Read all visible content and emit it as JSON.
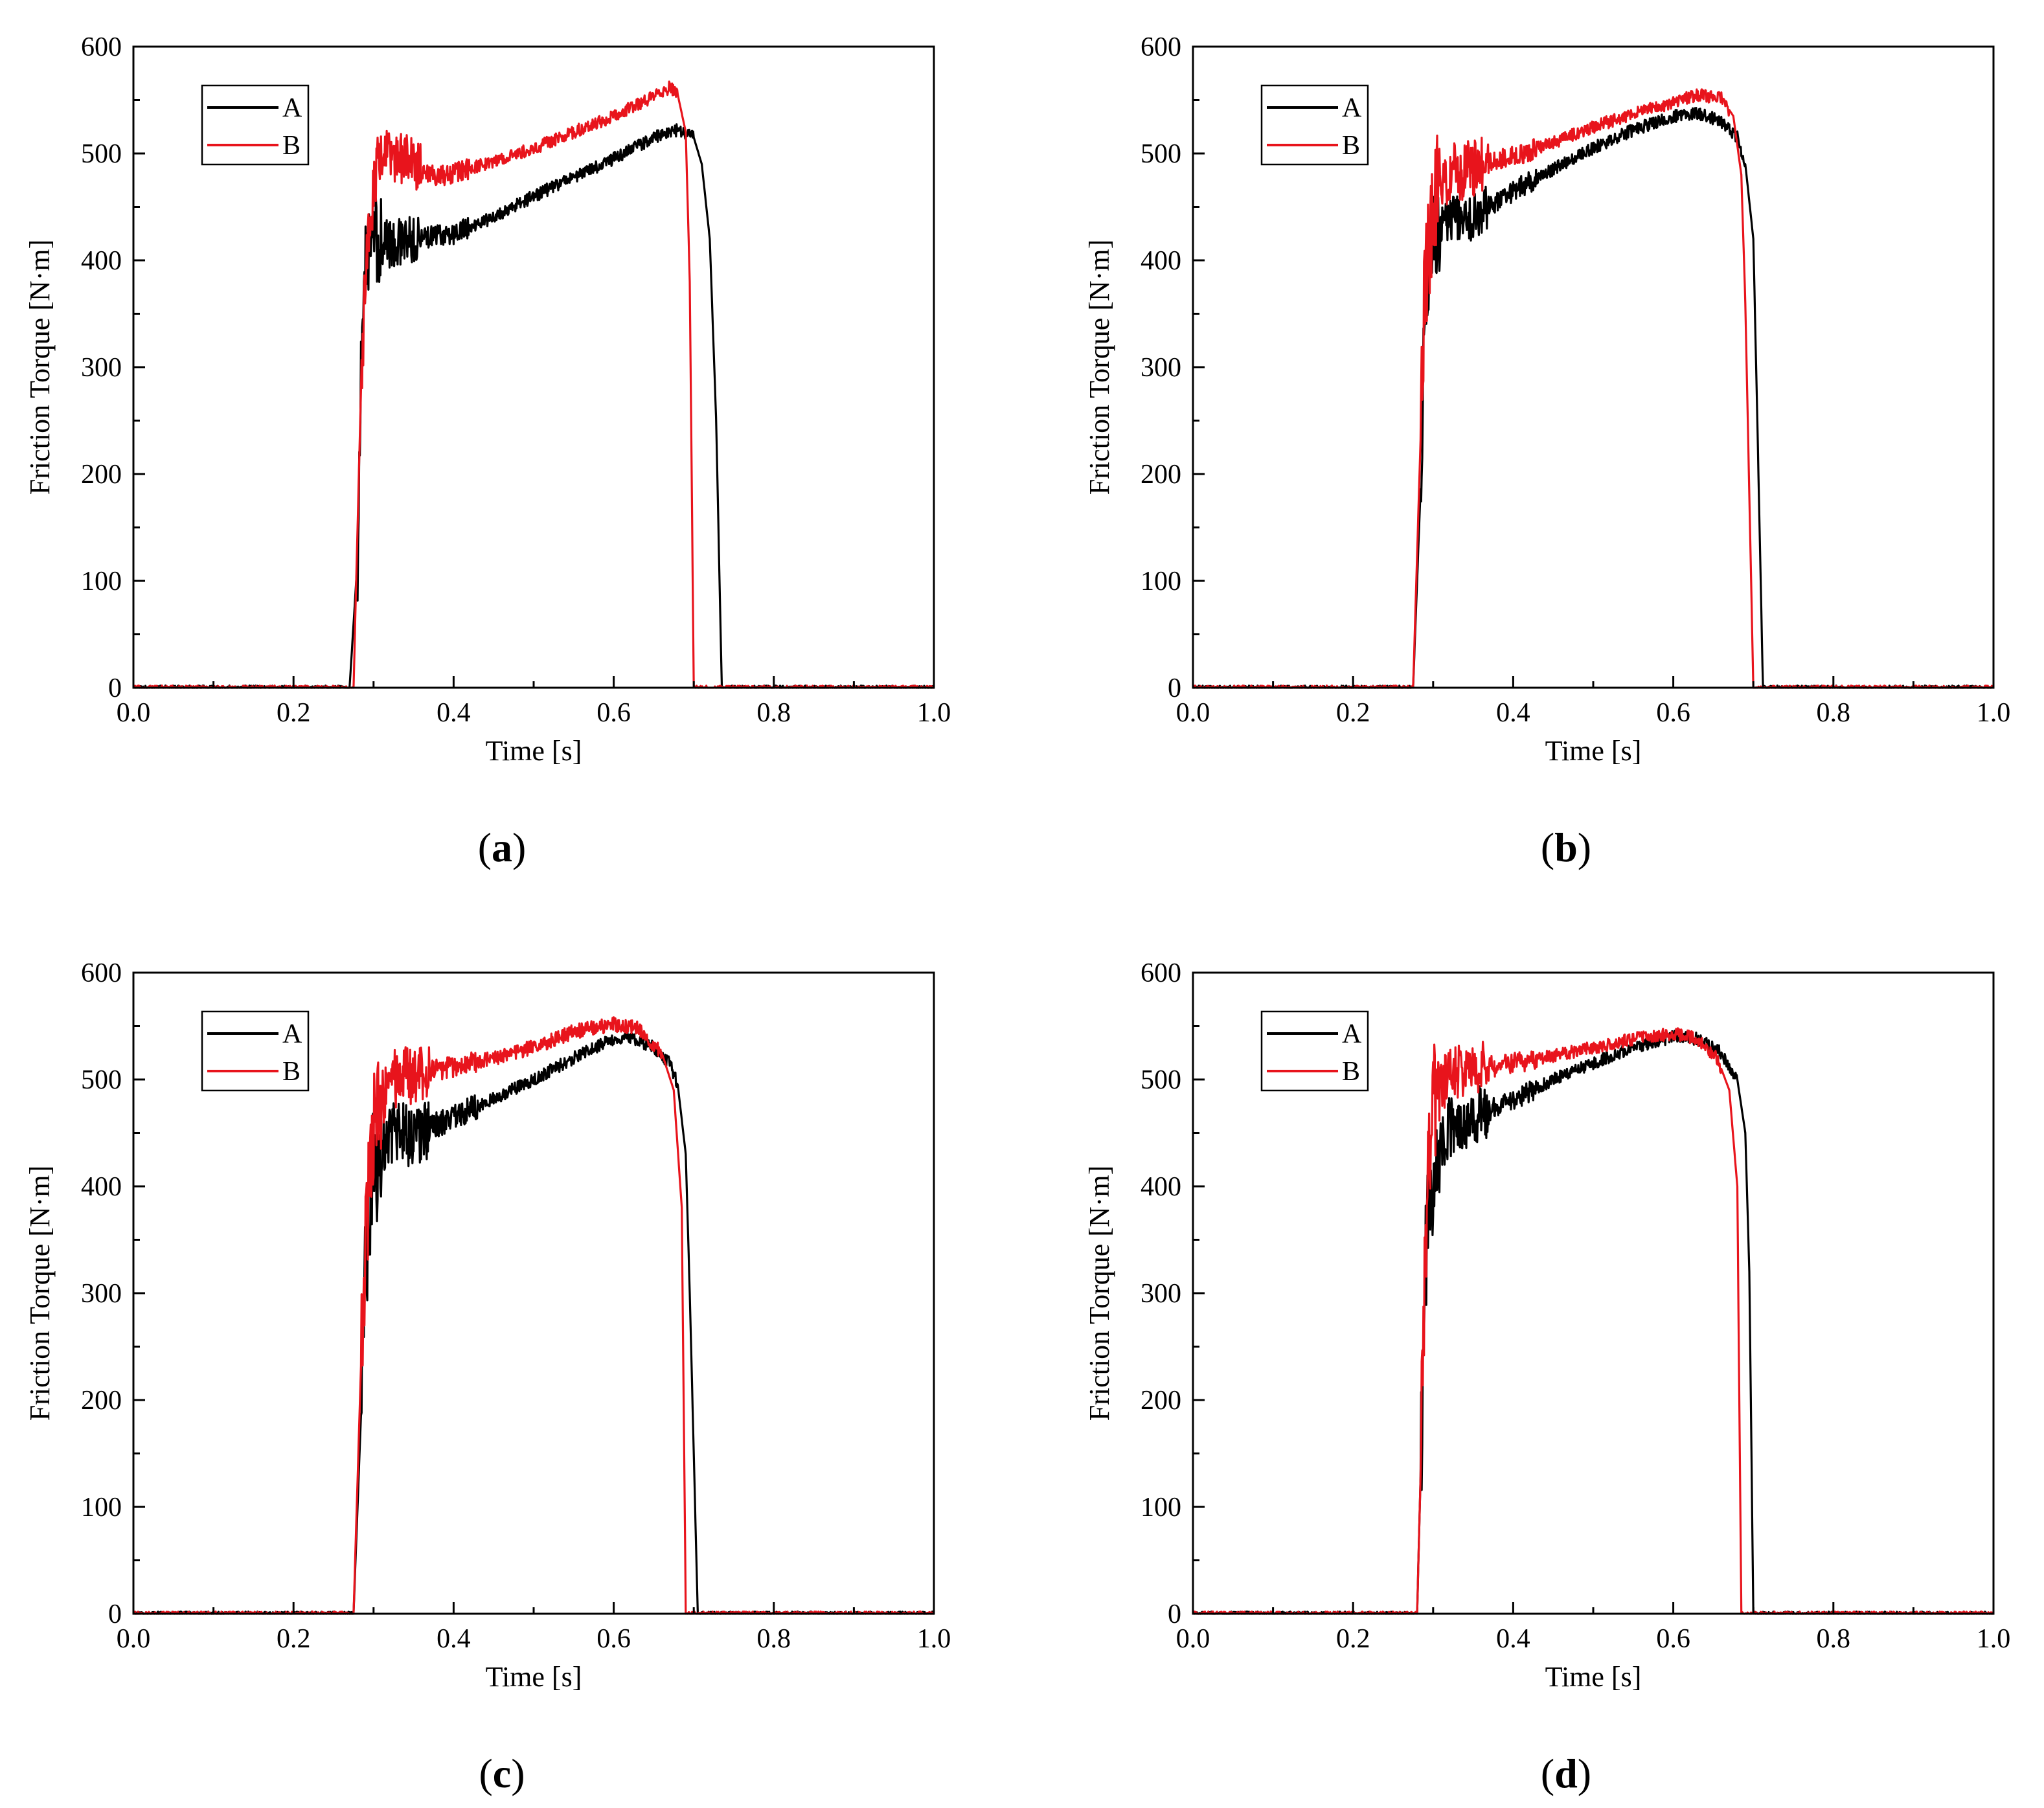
{
  "figure": {
    "colors": {
      "A": "#000000",
      "B": "#e8141c",
      "axis": "#000000",
      "background": "#ffffff"
    }
  },
  "chart_data": [
    {
      "panel": "a",
      "caption": {
        "open": "(",
        "letter": "a",
        "close": ")"
      },
      "type": "line",
      "title": "",
      "xlabel": "Time [s]",
      "ylabel": "Friction Torque [N·m]",
      "xlim": [
        0,
        1.0
      ],
      "ylim": [
        0,
        600
      ],
      "xticks": [
        "0.0",
        "0.2",
        "0.4",
        "0.6",
        "0.8",
        "1.0"
      ],
      "yticks": [
        "0",
        "100",
        "200",
        "300",
        "400",
        "500",
        "600"
      ],
      "grid": false,
      "legend_position": "top-left",
      "series": [
        {
          "name": "A",
          "color": "#000000",
          "points": [
            [
              0.0,
              0
            ],
            [
              0.27,
              0
            ],
            [
              0.28,
              120
            ],
            [
              0.285,
              330
            ],
            [
              0.29,
              400
            ],
            [
              0.3,
              420
            ],
            [
              0.32,
              415
            ],
            [
              0.35,
              420
            ],
            [
              0.4,
              425
            ],
            [
              0.45,
              440
            ],
            [
              0.5,
              460
            ],
            [
              0.55,
              478
            ],
            [
              0.6,
              495
            ],
            [
              0.65,
              515
            ],
            [
              0.68,
              522
            ],
            [
              0.7,
              515
            ],
            [
              0.71,
              490
            ],
            [
              0.72,
              420
            ],
            [
              0.728,
              250
            ],
            [
              0.735,
              0
            ],
            [
              1.0,
              0
            ]
          ],
          "noise": [
            [
              0.28,
              0.31,
              40
            ],
            [
              0.31,
              0.36,
              22
            ],
            [
              0.36,
              0.42,
              10
            ],
            [
              0.42,
              0.7,
              6
            ]
          ]
        },
        {
          "name": "B",
          "color": "#e8141c",
          "points": [
            [
              0.0,
              0
            ],
            [
              0.275,
              0
            ],
            [
              0.285,
              300
            ],
            [
              0.295,
              440
            ],
            [
              0.305,
              490
            ],
            [
              0.32,
              500
            ],
            [
              0.35,
              490
            ],
            [
              0.38,
              478
            ],
            [
              0.4,
              482
            ],
            [
              0.45,
              492
            ],
            [
              0.5,
              505
            ],
            [
              0.55,
              520
            ],
            [
              0.6,
              535
            ],
            [
              0.65,
              553
            ],
            [
              0.67,
              562
            ],
            [
              0.68,
              555
            ],
            [
              0.69,
              520
            ],
            [
              0.695,
              380
            ],
            [
              0.7,
              0
            ],
            [
              1.0,
              0
            ]
          ],
          "noise": [
            [
              0.285,
              0.3,
              45
            ],
            [
              0.3,
              0.36,
              25
            ],
            [
              0.36,
              0.42,
              10
            ],
            [
              0.42,
              0.68,
              6
            ]
          ]
        }
      ]
    },
    {
      "panel": "b",
      "caption": {
        "open": "(",
        "letter": "b",
        "close": ")"
      },
      "type": "line",
      "title": "",
      "xlabel": "Time [s]",
      "ylabel": "Friction Torque [N·m]",
      "xlim": [
        0,
        1.0
      ],
      "ylim": [
        0,
        600
      ],
      "xticks": [
        "0.0",
        "0.2",
        "0.4",
        "0.6",
        "0.8",
        "1.0"
      ],
      "yticks": [
        "0",
        "100",
        "200",
        "300",
        "400",
        "500",
        "600"
      ],
      "grid": false,
      "legend_position": "top-left",
      "series": [
        {
          "name": "A",
          "color": "#000000",
          "points": [
            [
              0.0,
              0
            ],
            [
              0.275,
              0
            ],
            [
              0.285,
              200
            ],
            [
              0.29,
              360
            ],
            [
              0.3,
              430
            ],
            [
              0.32,
              440
            ],
            [
              0.35,
              440
            ],
            [
              0.4,
              465
            ],
            [
              0.45,
              485
            ],
            [
              0.5,
              505
            ],
            [
              0.55,
              522
            ],
            [
              0.6,
              535
            ],
            [
              0.63,
              538
            ],
            [
              0.66,
              530
            ],
            [
              0.68,
              515
            ],
            [
              0.69,
              490
            ],
            [
              0.7,
              420
            ],
            [
              0.705,
              250
            ],
            [
              0.712,
              0
            ],
            [
              1.0,
              0
            ]
          ],
          "noise": [
            [
              0.285,
              0.31,
              45
            ],
            [
              0.31,
              0.37,
              22
            ],
            [
              0.37,
              0.43,
              10
            ],
            [
              0.43,
              0.69,
              6
            ]
          ]
        },
        {
          "name": "B",
          "color": "#e8141c",
          "points": [
            [
              0.0,
              0
            ],
            [
              0.275,
              0
            ],
            [
              0.285,
              250
            ],
            [
              0.29,
              380
            ],
            [
              0.3,
              460
            ],
            [
              0.32,
              480
            ],
            [
              0.35,
              488
            ],
            [
              0.4,
              497
            ],
            [
              0.45,
              510
            ],
            [
              0.5,
              525
            ],
            [
              0.55,
              537
            ],
            [
              0.6,
              548
            ],
            [
              0.63,
              555
            ],
            [
              0.66,
              552
            ],
            [
              0.675,
              535
            ],
            [
              0.685,
              480
            ],
            [
              0.69,
              360
            ],
            [
              0.7,
              0
            ],
            [
              1.0,
              0
            ]
          ],
          "noise": [
            [
              0.285,
              0.31,
              60
            ],
            [
              0.31,
              0.37,
              28
            ],
            [
              0.37,
              0.43,
              10
            ],
            [
              0.43,
              0.67,
              6
            ]
          ]
        }
      ]
    },
    {
      "panel": "c",
      "caption": {
        "open": "(",
        "letter": "c",
        "close": ")"
      },
      "type": "line",
      "title": "",
      "xlabel": "Time [s]",
      "ylabel": "Friction Torque [N·m]",
      "xlim": [
        0,
        1.0
      ],
      "ylim": [
        0,
        600
      ],
      "xticks": [
        "0.0",
        "0.2",
        "0.4",
        "0.6",
        "0.8",
        "1.0"
      ],
      "yticks": [
        "0",
        "100",
        "200",
        "300",
        "400",
        "500",
        "600"
      ],
      "grid": false,
      "legend_position": "top-left",
      "series": [
        {
          "name": "A",
          "color": "#000000",
          "points": [
            [
              0.0,
              0
            ],
            [
              0.275,
              0
            ],
            [
              0.285,
              200
            ],
            [
              0.29,
              330
            ],
            [
              0.3,
              420
            ],
            [
              0.32,
              450
            ],
            [
              0.35,
              448
            ],
            [
              0.4,
              465
            ],
            [
              0.45,
              482
            ],
            [
              0.5,
              500
            ],
            [
              0.55,
              520
            ],
            [
              0.6,
              538
            ],
            [
              0.62,
              540
            ],
            [
              0.65,
              530
            ],
            [
              0.67,
              515
            ],
            [
              0.68,
              495
            ],
            [
              0.69,
              430
            ],
            [
              0.695,
              300
            ],
            [
              0.7,
              150
            ],
            [
              0.705,
              0
            ],
            [
              1.0,
              0
            ]
          ],
          "noise": [
            [
              0.285,
              0.31,
              60
            ],
            [
              0.31,
              0.37,
              30
            ],
            [
              0.37,
              0.43,
              12
            ],
            [
              0.43,
              0.68,
              6
            ]
          ]
        },
        {
          "name": "B",
          "color": "#e8141c",
          "points": [
            [
              0.0,
              0
            ],
            [
              0.275,
              0
            ],
            [
              0.285,
              250
            ],
            [
              0.29,
              350
            ],
            [
              0.3,
              460
            ],
            [
              0.32,
              500
            ],
            [
              0.35,
              505
            ],
            [
              0.4,
              512
            ],
            [
              0.45,
              520
            ],
            [
              0.5,
              530
            ],
            [
              0.55,
              545
            ],
            [
              0.6,
              552
            ],
            [
              0.63,
              548
            ],
            [
              0.66,
              525
            ],
            [
              0.675,
              490
            ],
            [
              0.685,
              380
            ],
            [
              0.69,
              0
            ],
            [
              1.0,
              0
            ]
          ],
          "noise": [
            [
              0.285,
              0.31,
              55
            ],
            [
              0.31,
              0.37,
              28
            ],
            [
              0.37,
              0.43,
              10
            ],
            [
              0.43,
              0.66,
              7
            ]
          ]
        }
      ]
    },
    {
      "panel": "d",
      "caption": {
        "open": "(",
        "letter": "d",
        "close": ")"
      },
      "type": "line",
      "title": "",
      "xlabel": "Time [s]",
      "ylabel": "Friction Torque [N·m]",
      "xlim": [
        0,
        1.0
      ],
      "ylim": [
        0,
        600
      ],
      "xticks": [
        "0.0",
        "0.2",
        "0.4",
        "0.6",
        "0.8",
        "1.0"
      ],
      "yticks": [
        "0",
        "100",
        "200",
        "300",
        "400",
        "500",
        "600"
      ],
      "grid": false,
      "legend_position": "top-left",
      "series": [
        {
          "name": "A",
          "color": "#000000",
          "points": [
            [
              0.0,
              0
            ],
            [
              0.28,
              0
            ],
            [
              0.285,
              150
            ],
            [
              0.29,
              330
            ],
            [
              0.3,
              420
            ],
            [
              0.32,
              455
            ],
            [
              0.35,
              465
            ],
            [
              0.4,
              480
            ],
            [
              0.45,
              500
            ],
            [
              0.5,
              515
            ],
            [
              0.55,
              530
            ],
            [
              0.6,
              540
            ],
            [
              0.63,
              538
            ],
            [
              0.66,
              525
            ],
            [
              0.68,
              500
            ],
            [
              0.69,
              450
            ],
            [
              0.695,
              320
            ],
            [
              0.7,
              0
            ],
            [
              1.0,
              0
            ]
          ],
          "noise": [
            [
              0.285,
              0.31,
              60
            ],
            [
              0.31,
              0.37,
              28
            ],
            [
              0.37,
              0.43,
              10
            ],
            [
              0.43,
              0.68,
              6
            ]
          ]
        },
        {
          "name": "B",
          "color": "#e8141c",
          "points": [
            [
              0.0,
              0
            ],
            [
              0.28,
              0
            ],
            [
              0.285,
              150
            ],
            [
              0.29,
              350
            ],
            [
              0.3,
              480
            ],
            [
              0.32,
              505
            ],
            [
              0.35,
              510
            ],
            [
              0.4,
              515
            ],
            [
              0.45,
              522
            ],
            [
              0.5,
              530
            ],
            [
              0.55,
              538
            ],
            [
              0.6,
              543
            ],
            [
              0.63,
              538
            ],
            [
              0.655,
              520
            ],
            [
              0.67,
              490
            ],
            [
              0.68,
              400
            ],
            [
              0.685,
              0
            ],
            [
              1.0,
              0
            ]
          ],
          "noise": [
            [
              0.285,
              0.31,
              60
            ],
            [
              0.31,
              0.37,
              25
            ],
            [
              0.37,
              0.43,
              10
            ],
            [
              0.43,
              0.66,
              6
            ]
          ]
        }
      ]
    }
  ]
}
